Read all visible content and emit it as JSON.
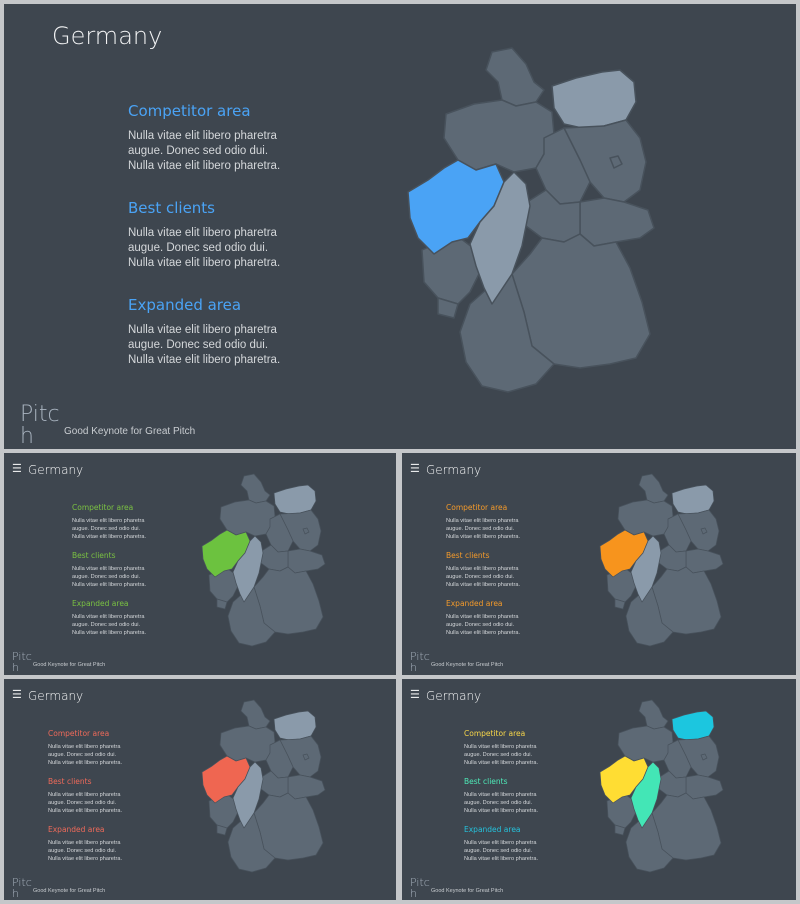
{
  "slides": [
    {
      "title": "Germany",
      "show_menu": false,
      "accent": "#4aa3f5",
      "sections": [
        {
          "heading": "Competitor area",
          "body": "Nulla vitae elit libero pharetra\naugue. Donec sed odio dui.\nNulla vitae elit libero pharetra."
        },
        {
          "heading": "Best clients",
          "body": "Nulla vitae elit libero pharetra\naugue. Donec sed odio dui.\nNulla vitae elit libero pharetra."
        },
        {
          "heading": "Expanded area",
          "body": "Nulla vitae elit libero pharetra\naugue. Donec sed odio dui.\nNulla vitae elit libero pharetra."
        }
      ],
      "logo": "Pitch",
      "tagline": "Good Keynote for Great Pitch",
      "region_colors": {
        "nrw": "#4aa3f5",
        "hesse": "#8a9aaa",
        "mecklenburg": "#8a9aaa"
      }
    },
    {
      "title": "Germany",
      "show_menu": true,
      "accent": "#7ac142",
      "sections": [
        {
          "heading": "Competitor area",
          "body": "Nulla vitae elit libero pharetra\naugue. Donec sed odio dui.\nNulla vitae elit libero pharetra."
        },
        {
          "heading": "Best clients",
          "body": "Nulla vitae elit libero pharetra\naugue. Donec sed odio dui.\nNulla vitae elit libero pharetra."
        },
        {
          "heading": "Expanded area",
          "body": "Nulla vitae elit libero pharetra\naugue. Donec sed odio dui.\nNulla vitae elit libero pharetra."
        }
      ],
      "logo": "Pitch",
      "tagline": "Good Keynote for Great Pitch",
      "region_colors": {
        "nrw": "#6cc23f",
        "hesse": "#8a9aaa",
        "mecklenburg": "#8a9aaa"
      }
    },
    {
      "title": "Germany",
      "show_menu": true,
      "accent": "#f39a2b",
      "sections": [
        {
          "heading": "Competitor area",
          "body": "Nulla vitae elit libero pharetra\naugue. Donec sed odio dui.\nNulla vitae elit libero pharetra."
        },
        {
          "heading": "Best clients",
          "body": "Nulla vitae elit libero pharetra\naugue. Donec sed odio dui.\nNulla vitae elit libero pharetra."
        },
        {
          "heading": "Expanded area",
          "body": "Nulla vitae elit libero pharetra\naugue. Donec sed odio dui.\nNulla vitae elit libero pharetra."
        }
      ],
      "logo": "Pitch",
      "tagline": "Good Keynote for Great Pitch",
      "region_colors": {
        "nrw": "#f7941d",
        "hesse": "#8a9aaa",
        "mecklenburg": "#8a9aaa"
      }
    },
    {
      "title": "Germany",
      "show_menu": true,
      "accent": "#ee6a5a",
      "sections": [
        {
          "heading": "Competitor area",
          "body": "Nulla vitae elit libero pharetra\naugue. Donec sed odio dui.\nNulla vitae elit libero pharetra."
        },
        {
          "heading": "Best clients",
          "body": "Nulla vitae elit libero pharetra\naugue. Donec sed odio dui.\nNulla vitae elit libero pharetra."
        },
        {
          "heading": "Expanded area",
          "body": "Nulla vitae elit libero pharetra\naugue. Donec sed odio dui.\nNulla vitae elit libero pharetra."
        }
      ],
      "logo": "Pitch",
      "tagline": "Good Keynote for Great Pitch",
      "region_colors": {
        "nrw": "#ef6651",
        "hesse": "#8a9aaa",
        "mecklenburg": "#8a9aaa"
      }
    },
    {
      "title": "Germany",
      "show_menu": true,
      "accent": "",
      "sections": [
        {
          "heading": "Competitor area",
          "color": "#f7d64a",
          "body": "Nulla vitae elit libero pharetra\naugue. Donec sed odio dui.\nNulla vitae elit libero pharetra."
        },
        {
          "heading": "Best clients",
          "color": "#4eeab8",
          "body": "Nulla vitae elit libero pharetra\naugue. Donec sed odio dui.\nNulla vitae elit libero pharetra."
        },
        {
          "heading": "Expanded area",
          "color": "#25c2dc",
          "body": "Nulla vitae elit libero pharetra\naugue. Donec sed odio dui.\nNulla vitae elit libero pharetra."
        }
      ],
      "logo": "Pitch",
      "tagline": "Good Keynote for Great Pitch",
      "region_colors": {
        "nrw": "#ffdd33",
        "hesse": "#43e6b6",
        "mecklenburg": "#1cc6df"
      }
    }
  ]
}
